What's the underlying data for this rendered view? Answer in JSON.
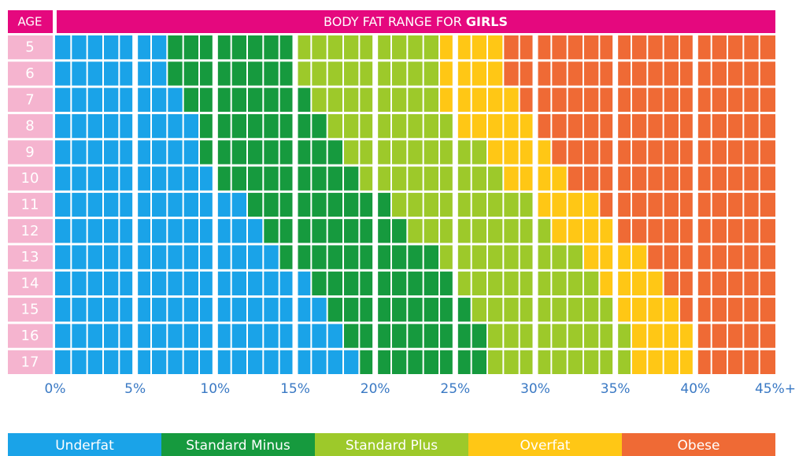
{
  "chart_data": {
    "type": "stacked_bar_horizontal",
    "age_header": "AGE",
    "title_parts": [
      "BODY FAT RANGE FOR",
      "GIRLS"
    ],
    "categories": [
      "5",
      "6",
      "7",
      "8",
      "9",
      "10",
      "11",
      "12",
      "13",
      "14",
      "15",
      "16",
      "17"
    ],
    "series": [
      {
        "name": "Underfat",
        "color": "#1aa3e8",
        "values": [
          7,
          7,
          8,
          9,
          9,
          10,
          12,
          13,
          14,
          16,
          17,
          18,
          19
        ]
      },
      {
        "name": "Standard Minus",
        "color": "#169a3e",
        "values": [
          8,
          8,
          8,
          8,
          9,
          9,
          9,
          9,
          10,
          9,
          9,
          9,
          8
        ]
      },
      {
        "name": "Standard Plus",
        "color": "#9dc92a",
        "values": [
          9,
          9,
          8,
          8,
          9,
          9,
          9,
          9,
          9,
          9,
          9,
          9,
          9
        ]
      },
      {
        "name": "Overfat",
        "color": "#ffc715",
        "values": [
          4,
          4,
          5,
          5,
          4,
          4,
          4,
          4,
          4,
          4,
          4,
          4,
          4
        ]
      },
      {
        "name": "Obese",
        "color": "#ef6a35",
        "values": [
          17,
          17,
          16,
          15,
          14,
          13,
          11,
          10,
          8,
          7,
          6,
          5,
          5
        ]
      }
    ],
    "xlim": [
      0,
      45
    ],
    "xticks": [
      {
        "value": 0,
        "label": "0%"
      },
      {
        "value": 5,
        "label": "5%"
      },
      {
        "value": 10,
        "label": "10%"
      },
      {
        "value": 15,
        "label": "15%"
      },
      {
        "value": 20,
        "label": "20%"
      },
      {
        "value": 25,
        "label": "25%"
      },
      {
        "value": 30,
        "label": "30%"
      },
      {
        "value": 35,
        "label": "35%"
      },
      {
        "value": 40,
        "label": "40%"
      },
      {
        "value": 45,
        "label": "45%+"
      }
    ]
  }
}
